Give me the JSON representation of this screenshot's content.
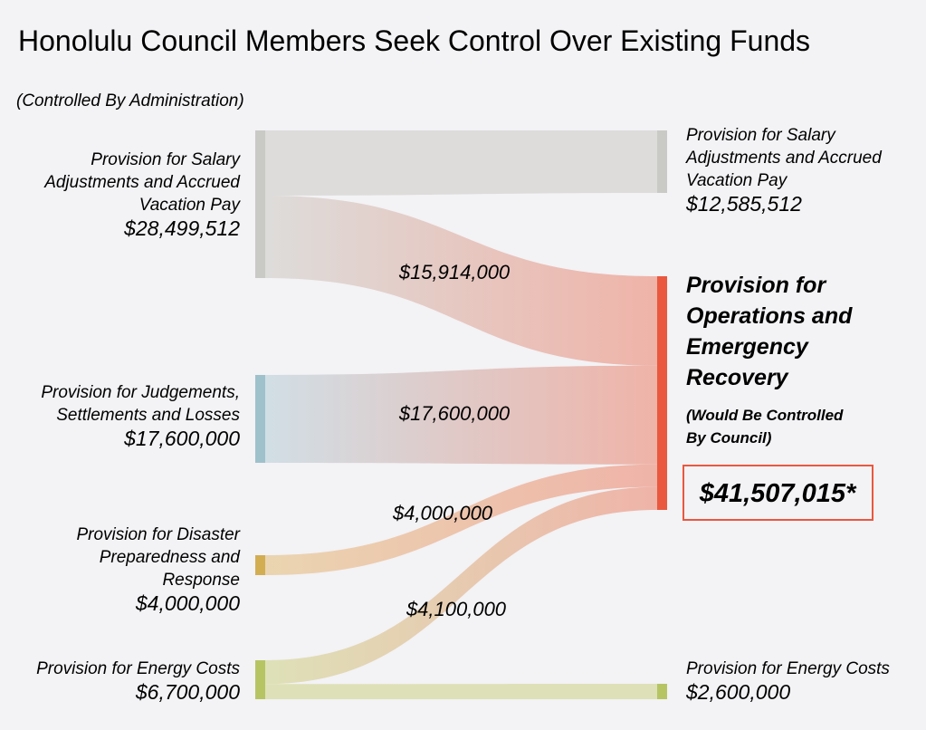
{
  "colors": {
    "background": "#f3f2f5",
    "salary": "#c9c9c6",
    "judgements": "#9fc1cc",
    "disaster": "#d2ad52",
    "energy": "#b7c464",
    "target": "#e9583f",
    "salary_flow": "#dcdbd9",
    "judgements_flow": "#cfdde4",
    "disaster_flow": "#ead3ad",
    "energy_flow": "#dde0b4",
    "target_flow": "#efb0a4"
  },
  "chart_data": {
    "type": "sankey",
    "title": "Honolulu Council Members Seek Control Over Existing Funds",
    "subtitle": "(Controlled By Administration)",
    "sources": [
      {
        "id": "salary",
        "label_lines": [
          "Provision for Salary",
          "Adjustments and Accrued",
          "Vacation Pay"
        ],
        "amount": "$28,499,512",
        "value": 28499512
      },
      {
        "id": "judgements",
        "label_lines": [
          "Provision for Judgements,",
          "Settlements and Losses"
        ],
        "amount": "$17,600,000",
        "value": 17600000
      },
      {
        "id": "disaster",
        "label_lines": [
          "Provision for Disaster",
          "Preparedness and",
          "Response"
        ],
        "amount": "$4,000,000",
        "value": 4000000
      },
      {
        "id": "energy",
        "label_lines": [
          "Provision for Energy Costs"
        ],
        "amount": "$6,700,000",
        "value": 6700000
      }
    ],
    "targets": [
      {
        "id": "salary_remaining",
        "label_lines": [
          "Provision for Salary",
          "Adjustments and Accrued",
          "Vacation Pay"
        ],
        "amount": "$12,585,512",
        "value": 12585512
      },
      {
        "id": "operations",
        "label_lines": [
          "Provision for",
          "Operations and",
          "Emergency",
          "Recovery"
        ],
        "note_lines": [
          "(Would Be Controlled",
          "By Council)"
        ],
        "amount": "$41,507,015*",
        "value": 41507015
      },
      {
        "id": "energy_remaining",
        "label_lines": [
          "Provision for Energy Costs"
        ],
        "amount": "$2,600,000",
        "value": 2600000
      }
    ],
    "flows": [
      {
        "from": "salary",
        "to": "salary_remaining",
        "value": 12585512,
        "label": ""
      },
      {
        "from": "salary",
        "to": "operations",
        "value": 15914000,
        "label": "$15,914,000"
      },
      {
        "from": "judgements",
        "to": "operations",
        "value": 17600000,
        "label": "$17,600,000"
      },
      {
        "from": "disaster",
        "to": "operations",
        "value": 4000000,
        "label": "$4,000,000"
      },
      {
        "from": "energy",
        "to": "operations",
        "value": 4100000,
        "label": "$4,100,000"
      },
      {
        "from": "energy",
        "to": "energy_remaining",
        "value": 2600000,
        "label": ""
      }
    ]
  }
}
